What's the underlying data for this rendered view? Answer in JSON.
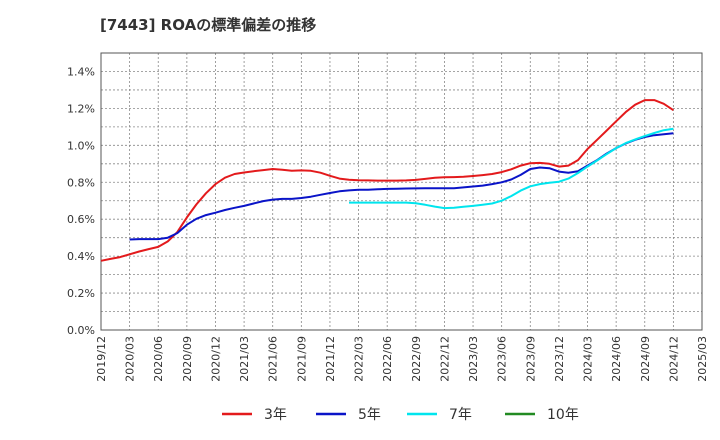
{
  "chart_data": {
    "type": "line",
    "title": "[7443]  ROAの標準偏差の推移",
    "x_labels": [
      "2019/12",
      "2020/03",
      "2020/06",
      "2020/09",
      "2020/12",
      "2021/03",
      "2021/06",
      "2021/09",
      "2021/12",
      "2022/03",
      "2022/06",
      "2022/09",
      "2022/12",
      "2023/03",
      "2023/06",
      "2023/09",
      "2023/12",
      "2024/03",
      "2024/06",
      "2024/09",
      "2024/12",
      "2025/03"
    ],
    "y_ticks": [
      "0.0%",
      "0.2%",
      "0.4%",
      "0.6%",
      "0.8%",
      "1.0%",
      "1.2%",
      "1.4%"
    ],
    "ylim": [
      0,
      1.5
    ],
    "grid": true,
    "legend_position": "bottom",
    "series": [
      {
        "name": "3年",
        "color": "#e31a1c",
        "values": [
          [
            0,
            0.375
          ],
          [
            1,
            0.385
          ],
          [
            2,
            0.395
          ],
          [
            3,
            0.41
          ],
          [
            4,
            0.425
          ],
          [
            5,
            0.438
          ],
          [
            6,
            0.45
          ],
          [
            7,
            0.48
          ],
          [
            8,
            0.53
          ],
          [
            9,
            0.61
          ],
          [
            10,
            0.68
          ],
          [
            11,
            0.74
          ],
          [
            12,
            0.79
          ],
          [
            13,
            0.825
          ],
          [
            14,
            0.845
          ],
          [
            15,
            0.853
          ],
          [
            16,
            0.86
          ],
          [
            17,
            0.866
          ],
          [
            18,
            0.872
          ],
          [
            19,
            0.868
          ],
          [
            20,
            0.862
          ],
          [
            21,
            0.864
          ],
          [
            22,
            0.862
          ],
          [
            23,
            0.852
          ],
          [
            24,
            0.835
          ],
          [
            25,
            0.82
          ],
          [
            26,
            0.814
          ],
          [
            27,
            0.811
          ],
          [
            28,
            0.81
          ],
          [
            29,
            0.809
          ],
          [
            30,
            0.809
          ],
          [
            31,
            0.809
          ],
          [
            32,
            0.81
          ],
          [
            33,
            0.813
          ],
          [
            34,
            0.818
          ],
          [
            35,
            0.824
          ],
          [
            36,
            0.827
          ],
          [
            37,
            0.828
          ],
          [
            38,
            0.83
          ],
          [
            39,
            0.834
          ],
          [
            40,
            0.839
          ],
          [
            41,
            0.845
          ],
          [
            42,
            0.855
          ],
          [
            43,
            0.87
          ],
          [
            44,
            0.89
          ],
          [
            45,
            0.903
          ],
          [
            46,
            0.905
          ],
          [
            47,
            0.9
          ],
          [
            48,
            0.885
          ],
          [
            49,
            0.89
          ],
          [
            50,
            0.92
          ],
          [
            51,
            0.98
          ],
          [
            52,
            1.03
          ],
          [
            53,
            1.08
          ],
          [
            54,
            1.13
          ],
          [
            55,
            1.18
          ],
          [
            56,
            1.22
          ],
          [
            57,
            1.245
          ],
          [
            58,
            1.245
          ],
          [
            59,
            1.225
          ],
          [
            60,
            1.19
          ]
        ]
      },
      {
        "name": "5年",
        "color": "#0a14c8",
        "values": [
          [
            3,
            0.49
          ],
          [
            4,
            0.492
          ],
          [
            5,
            0.492
          ],
          [
            6,
            0.492
          ],
          [
            7,
            0.5
          ],
          [
            8,
            0.525
          ],
          [
            9,
            0.57
          ],
          [
            10,
            0.602
          ],
          [
            11,
            0.622
          ],
          [
            12,
            0.635
          ],
          [
            13,
            0.65
          ],
          [
            14,
            0.662
          ],
          [
            15,
            0.672
          ],
          [
            16,
            0.685
          ],
          [
            17,
            0.698
          ],
          [
            18,
            0.706
          ],
          [
            19,
            0.71
          ],
          [
            20,
            0.71
          ],
          [
            21,
            0.715
          ],
          [
            22,
            0.722
          ],
          [
            23,
            0.732
          ],
          [
            24,
            0.742
          ],
          [
            25,
            0.751
          ],
          [
            26,
            0.756
          ],
          [
            27,
            0.759
          ],
          [
            28,
            0.76
          ],
          [
            29,
            0.762
          ],
          [
            30,
            0.764
          ],
          [
            31,
            0.765
          ],
          [
            32,
            0.766
          ],
          [
            33,
            0.767
          ],
          [
            34,
            0.768
          ],
          [
            35,
            0.768
          ],
          [
            36,
            0.768
          ],
          [
            37,
            0.768
          ],
          [
            38,
            0.772
          ],
          [
            39,
            0.777
          ],
          [
            40,
            0.782
          ],
          [
            41,
            0.79
          ],
          [
            42,
            0.8
          ],
          [
            43,
            0.815
          ],
          [
            44,
            0.84
          ],
          [
            45,
            0.872
          ],
          [
            46,
            0.88
          ],
          [
            47,
            0.876
          ],
          [
            48,
            0.858
          ],
          [
            49,
            0.852
          ],
          [
            50,
            0.86
          ],
          [
            51,
            0.89
          ],
          [
            52,
            0.92
          ],
          [
            53,
            0.955
          ],
          [
            54,
            0.985
          ],
          [
            55,
            1.01
          ],
          [
            56,
            1.03
          ],
          [
            57,
            1.045
          ],
          [
            58,
            1.055
          ],
          [
            59,
            1.06
          ],
          [
            60,
            1.065
          ]
        ]
      },
      {
        "name": "7年",
        "color": "#00e5ee",
        "values": [
          [
            26,
            0.69
          ],
          [
            27,
            0.69
          ],
          [
            28,
            0.69
          ],
          [
            29,
            0.69
          ],
          [
            30,
            0.69
          ],
          [
            31,
            0.69
          ],
          [
            32,
            0.69
          ],
          [
            33,
            0.686
          ],
          [
            34,
            0.678
          ],
          [
            35,
            0.668
          ],
          [
            36,
            0.66
          ],
          [
            37,
            0.662
          ],
          [
            38,
            0.667
          ],
          [
            39,
            0.672
          ],
          [
            40,
            0.678
          ],
          [
            41,
            0.685
          ],
          [
            42,
            0.7
          ],
          [
            43,
            0.725
          ],
          [
            44,
            0.755
          ],
          [
            45,
            0.778
          ],
          [
            46,
            0.79
          ],
          [
            47,
            0.797
          ],
          [
            48,
            0.803
          ],
          [
            49,
            0.82
          ],
          [
            50,
            0.85
          ],
          [
            51,
            0.885
          ],
          [
            52,
            0.918
          ],
          [
            53,
            0.952
          ],
          [
            54,
            0.985
          ],
          [
            55,
            1.012
          ],
          [
            56,
            1.032
          ],
          [
            57,
            1.05
          ],
          [
            58,
            1.067
          ],
          [
            59,
            1.082
          ],
          [
            60,
            1.09
          ]
        ]
      },
      {
        "name": "10年",
        "color": "#228b22",
        "values": []
      }
    ]
  }
}
